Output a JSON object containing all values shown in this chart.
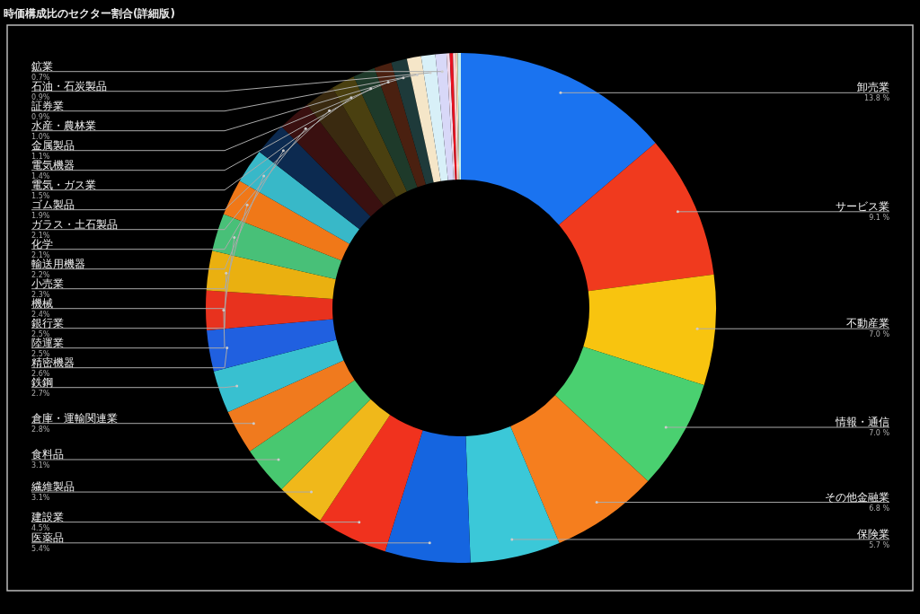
{
  "chart_data": {
    "type": "donut",
    "title": "時価構成比のセクター割合(詳細版)",
    "categories": [
      "卸売業",
      "サービス業",
      "不動産業",
      "情報・通信",
      "その他金融業",
      "保険業",
      "医薬品",
      "建設業",
      "繊維製品",
      "食料品",
      "倉庫・運輸関連業",
      "鉄鋼",
      "精密機器",
      "陸運業",
      "銀行業",
      "機械",
      "小売業",
      "輸送用機器",
      "化学",
      "ガラス・土石製品",
      "ゴム製品",
      "電気・ガス業",
      "電気機器",
      "金属製品",
      "水産・農林業",
      "証券業",
      "石油・石炭製品",
      "鉱業",
      null,
      null,
      null,
      null,
      null
    ],
    "values": [
      13.8,
      9.1,
      7.0,
      7.0,
      6.8,
      5.7,
      5.4,
      4.5,
      3.1,
      3.1,
      2.8,
      2.7,
      2.6,
      2.5,
      2.5,
      2.4,
      2.3,
      2.2,
      2.1,
      2.1,
      1.9,
      1.5,
      1.4,
      1.1,
      1.0,
      0.9,
      0.9,
      0.7,
      0.2,
      0.2,
      0.2,
      0.1,
      0.2
    ],
    "value_labels": [
      "13.8 %",
      "9.1 %",
      "7.0 %",
      "7.0 %",
      "6.8 %",
      "5.7 %",
      "5.4%",
      "4.5%",
      "3.1%",
      "3.1%",
      "2.8%",
      "2.7%",
      "2.6%",
      "2.5%",
      "2.5%",
      "2.4%",
      "2.3%",
      "2.2%",
      "2.1%",
      "2.1%",
      "1.9%",
      "1.5%",
      "1.4%",
      "1.1%",
      "1.0%",
      "0.9%",
      "0.9%",
      "0.7%",
      null,
      null,
      null,
      null,
      null
    ],
    "colors": [
      "#1a73f0",
      "#f03a1e",
      "#f8c40f",
      "#4ad070",
      "#f57e1e",
      "#3bc8d8",
      "#1565e0",
      "#f0321e",
      "#f0b81a",
      "#48c870",
      "#f07a1e",
      "#38c0d0",
      "#2060e0",
      "#e8321e",
      "#eab010",
      "#48c078",
      "#f07818",
      "#38b8c8",
      "#0c2a50",
      "#3a1010",
      "#3a2a10",
      "#4a4010",
      "#1e3a2a",
      "#4a2010",
      "#1e3a3a",
      "#f5e6c8",
      "#d8f0f8",
      "#d8d8f8",
      "#f0d8e8",
      "#e8101e",
      "#f8d0d0",
      "#f8e0b0",
      "#c0f0f0"
    ]
  }
}
